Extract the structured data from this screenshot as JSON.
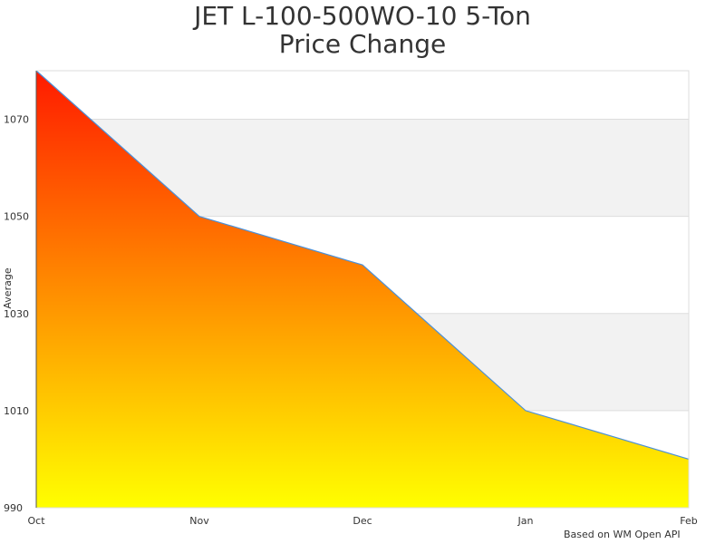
{
  "chart_data": {
    "type": "area",
    "title_line1": "JET L-100-500WO-10 5-Ton",
    "title_line2": "Price Change",
    "xlabel": "",
    "ylabel": "Average",
    "categories": [
      "Oct",
      "Nov",
      "Dec",
      "Jan",
      "Feb"
    ],
    "values": [
      1080,
      1050,
      1040,
      1010,
      1000
    ],
    "ylim": [
      990,
      1080
    ],
    "yticks": [
      990,
      1010,
      1030,
      1050,
      1070
    ],
    "grid": true,
    "alternating_bands": true,
    "fill_gradient": [
      "#ff1a00",
      "#ffff00"
    ],
    "line_color": "#4a90d9",
    "band_color": "#f2f2f2",
    "credit": "Based on WM Open API"
  }
}
